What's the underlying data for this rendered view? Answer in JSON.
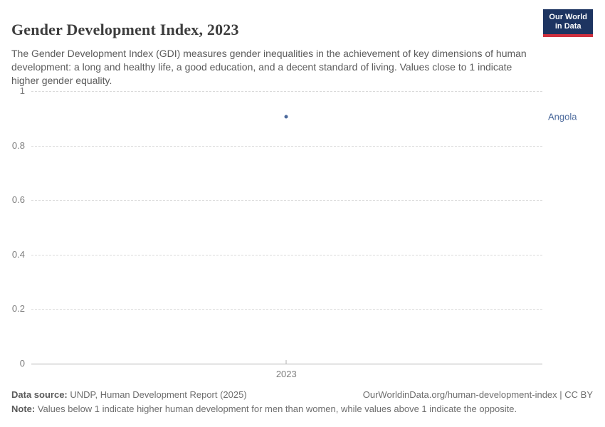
{
  "header": {
    "title": "Gender Development Index, 2023",
    "subtitle": "The Gender Development Index (GDI) measures gender inequalities in the achievement of key dimensions of human development: a long and healthy life, a good education, and a decent standard of living. Values close to 1 indicate higher gender equality.",
    "logo": {
      "line1": "Our World",
      "line2": "in Data",
      "bg_color": "#1d3461",
      "accent_color": "#cf303e"
    }
  },
  "chart_data": {
    "type": "scatter",
    "title": "Gender Development Index, 2023",
    "x": [
      2023
    ],
    "series": [
      {
        "name": "Angola",
        "values": [
          0.907
        ],
        "color": "#4c6a9c"
      }
    ],
    "xlabel": "",
    "ylabel": "",
    "ylim": [
      0,
      1
    ],
    "yticks": [
      0,
      0.2,
      0.4,
      0.6,
      0.8,
      1
    ],
    "xticks": [
      "2023"
    ],
    "x_frac": 0.499,
    "grid": "horizontal-dashed",
    "legend_position": "right-of-point",
    "annotations": [
      "Angola"
    ]
  },
  "footer": {
    "datasource_label": "Data source:",
    "datasource_text": " UNDP, Human Development Report (2025)",
    "link": "OurWorldinData.org/human-development-index | CC BY",
    "note_label": "Note:",
    "note_text": " Values below 1 indicate higher human development for men than women, while values above 1 indicate the opposite."
  }
}
